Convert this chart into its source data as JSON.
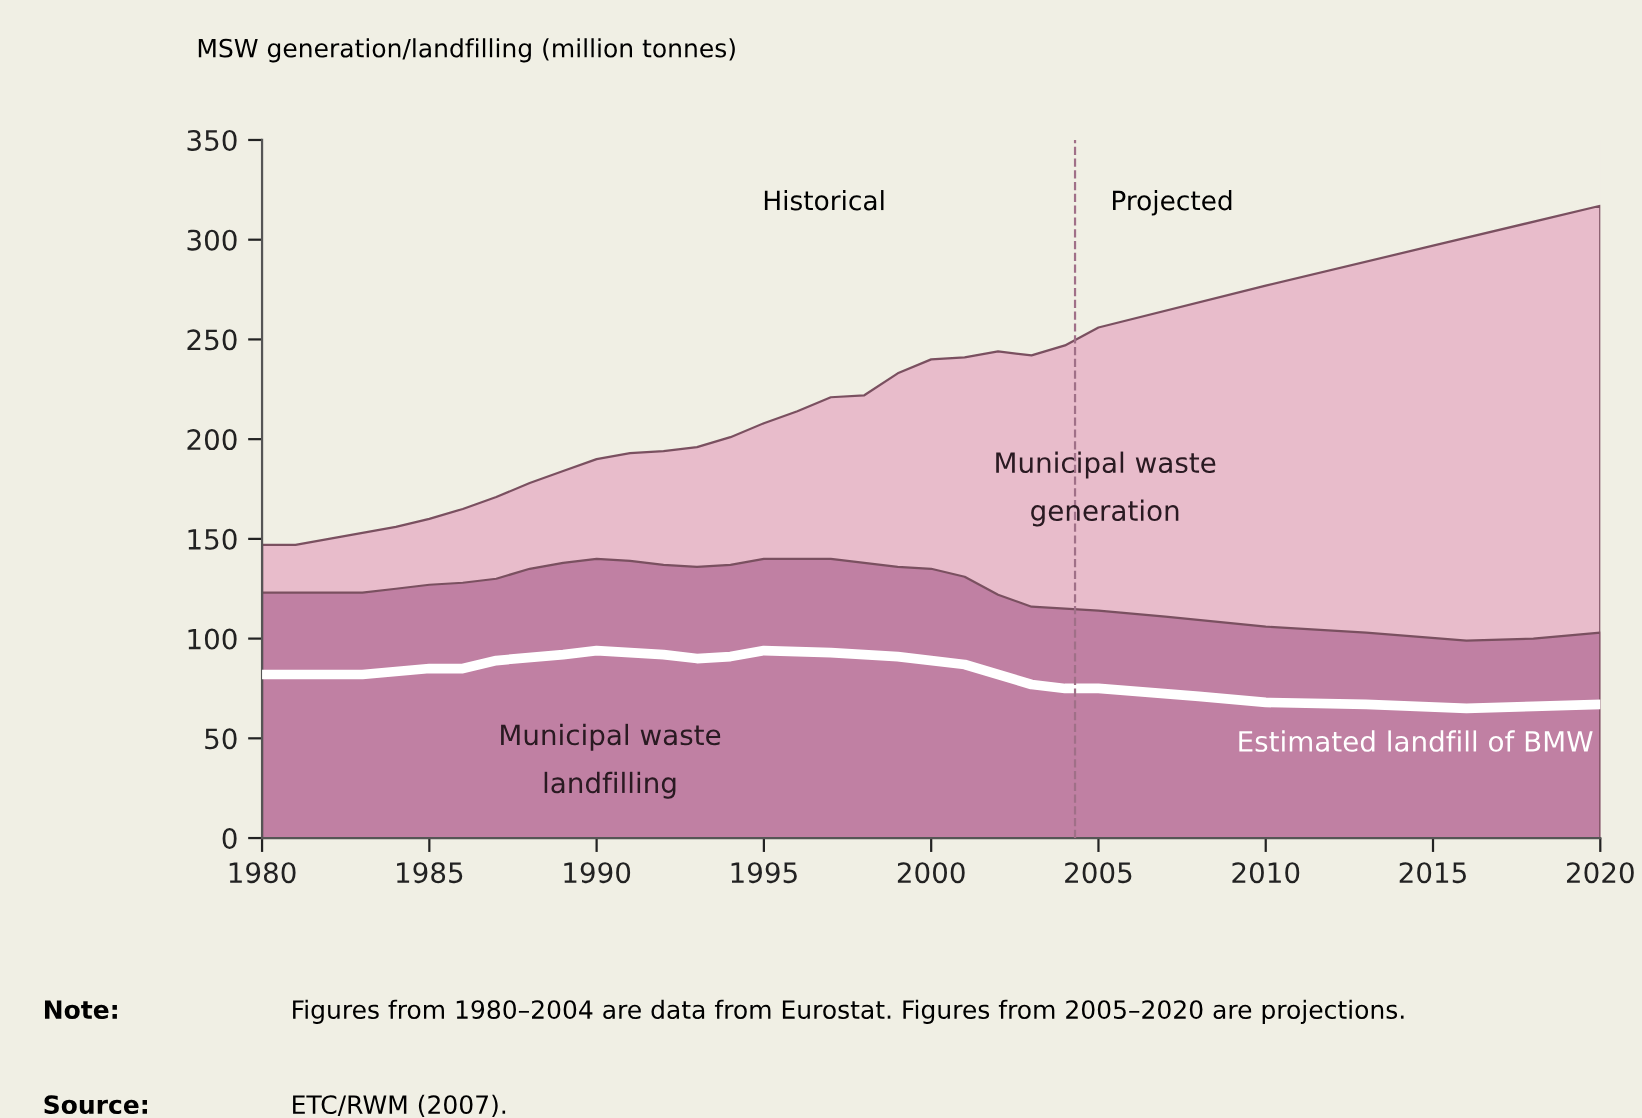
{
  "chart_data": {
    "type": "area",
    "ylabel": "MSW generation/landfilling (million tonnes)",
    "xlim": [
      1980,
      2020
    ],
    "xticks": [
      1980,
      1985,
      1990,
      1995,
      2000,
      2005,
      2010,
      2015,
      2020
    ],
    "ylim": [
      0,
      350
    ],
    "yticks": [
      0,
      50,
      100,
      150,
      200,
      250,
      300,
      350
    ],
    "grid": false,
    "legend": false,
    "series": [
      {
        "name": "Municipal waste generation",
        "color": "#e8bccb",
        "x": [
          1980,
          1981,
          1982,
          1983,
          1984,
          1985,
          1986,
          1987,
          1988,
          1989,
          1990,
          1991,
          1992,
          1993,
          1994,
          1995,
          1996,
          1997,
          1998,
          1999,
          2000,
          2001,
          2002,
          2003,
          2004,
          2005,
          2010,
          2015,
          2020
        ],
        "values": [
          147,
          147,
          150,
          153,
          156,
          160,
          165,
          171,
          178,
          184,
          190,
          193,
          194,
          196,
          201,
          208,
          214,
          221,
          222,
          233,
          240,
          241,
          244,
          242,
          247,
          256,
          277,
          297,
          317
        ]
      },
      {
        "name": "Municipal waste landfilling",
        "color": "#c080a3",
        "x": [
          1980,
          1983,
          1984,
          1985,
          1986,
          1987,
          1988,
          1989,
          1990,
          1991,
          1992,
          1993,
          1994,
          1995,
          1996,
          1997,
          1998,
          1999,
          2000,
          2001,
          2002,
          2003,
          2004,
          2005,
          2007,
          2010,
          2013,
          2016,
          2018,
          2020
        ],
        "values": [
          123,
          123,
          125,
          127,
          128,
          130,
          135,
          138,
          140,
          139,
          137,
          136,
          137,
          140,
          140,
          140,
          138,
          136,
          135,
          131,
          122,
          116,
          115,
          114,
          111,
          106,
          103,
          99,
          100,
          103
        ]
      },
      {
        "name": "Estimated landfill of BMW",
        "type": "line",
        "color": "#ffffff",
        "x": [
          1980,
          1983,
          1985,
          1986,
          1987,
          1989,
          1990,
          1992,
          1993,
          1994,
          1995,
          1997,
          1999,
          2001,
          2003,
          2004,
          2005,
          2008,
          2010,
          2013,
          2016,
          2018,
          2020
        ],
        "values": [
          82,
          82,
          85,
          85,
          89,
          92,
          94,
          92,
          90,
          91,
          94,
          93,
          91,
          87,
          77,
          75,
          75,
          71,
          68,
          67,
          65,
          66,
          67
        ]
      }
    ],
    "ref_lines": [
      {
        "axis": "x",
        "value": 2004.3,
        "color": "#a07088",
        "line_style": "dashed"
      }
    ],
    "annotations": [
      "Historical",
      "Projected",
      "Note: Figures from 1980–2004 are data from Eurostat. Figures from 2005–2020 are projections.",
      "Source: ETC/RWM (2007)."
    ]
  }
}
